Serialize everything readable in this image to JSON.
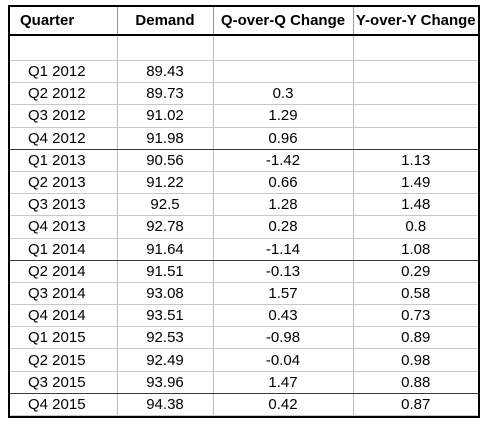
{
  "table": {
    "headers": [
      "Quarter",
      "Demand",
      "Q-over-Q Change",
      "Y-over-Y Change"
    ],
    "rows": [
      [
        "Q1 2012",
        "89.43",
        "",
        ""
      ],
      [
        "Q2 2012",
        "89.73",
        "0.3",
        ""
      ],
      [
        "Q3 2012",
        "91.02",
        "1.29",
        ""
      ],
      [
        "Q4 2012",
        "91.98",
        "0.96",
        ""
      ],
      [
        "Q1 2013",
        "90.56",
        "-1.42",
        "1.13"
      ],
      [
        "Q2 2013",
        "91.22",
        "0.66",
        "1.49"
      ],
      [
        "Q3 2013",
        "92.5",
        "1.28",
        "1.48"
      ],
      [
        "Q4 2013",
        "92.78",
        "0.28",
        "0.8"
      ],
      [
        "Q1 2014",
        "91.64",
        "-1.14",
        "1.08"
      ],
      [
        "Q2 2014",
        "91.51",
        "-0.13",
        "0.29"
      ],
      [
        "Q3 2014",
        "93.08",
        "1.57",
        "0.58"
      ],
      [
        "Q4 2014",
        "93.51",
        "0.43",
        "0.73"
      ],
      [
        "Q1 2015",
        "92.53",
        "-0.98",
        "0.89"
      ],
      [
        "Q2 2015",
        "92.49",
        "-0.04",
        "0.98"
      ],
      [
        "Q3 2015",
        "93.96",
        "1.47",
        "0.88"
      ],
      [
        "Q4 2015",
        "94.38",
        "0.42",
        "0.87"
      ]
    ]
  }
}
